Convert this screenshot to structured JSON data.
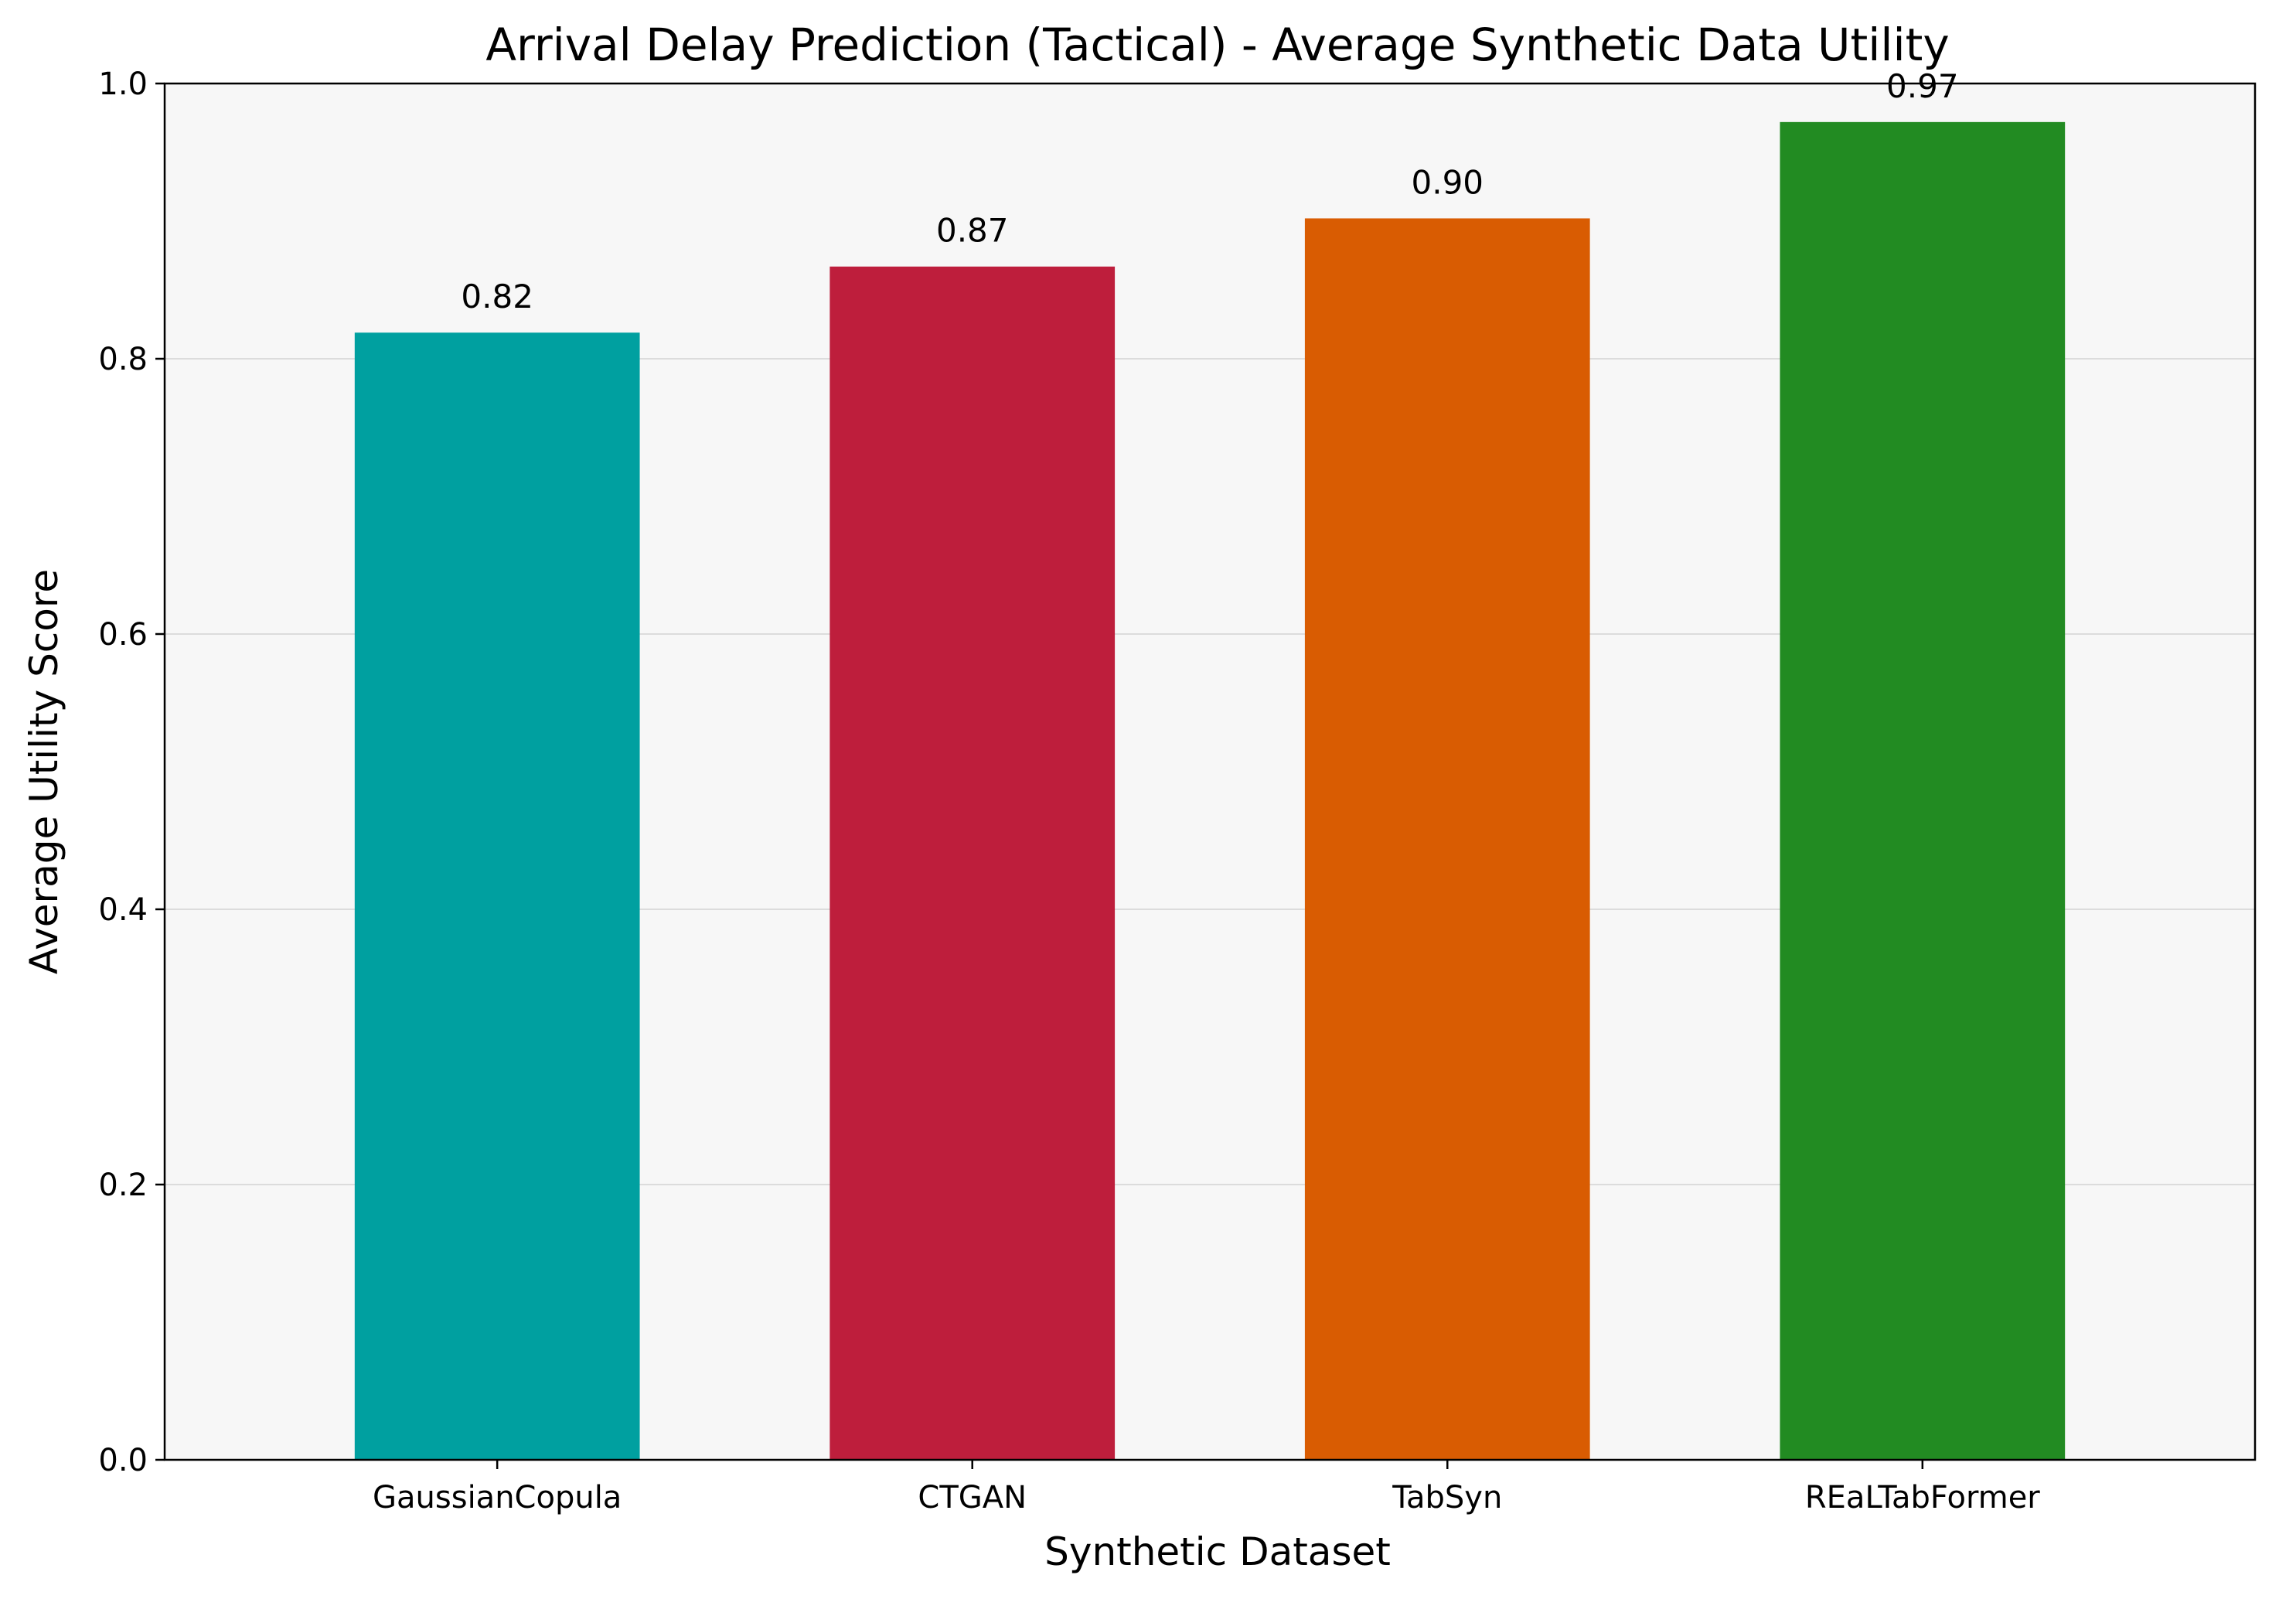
{
  "chart_data": {
    "type": "bar",
    "title": "Arrival Delay Prediction (Tactical) - Average Synthetic Data Utility",
    "xlabel": "Synthetic Dataset",
    "ylabel": "Average Utility Score",
    "categories": [
      "GaussianCopula",
      "CTGAN",
      "TabSyn",
      "REaLTabFormer"
    ],
    "values": [
      0.819,
      0.867,
      0.902,
      0.972
    ],
    "value_labels": [
      "0.82",
      "0.87",
      "0.90",
      "0.97"
    ],
    "colors": [
      "#00a0a0",
      "#be1e3c",
      "#d95c02",
      "#228b22"
    ],
    "ylim": [
      0,
      1.0
    ],
    "yticks": [
      0.0,
      0.2,
      0.4,
      0.6,
      0.8,
      1.0
    ],
    "ytick_labels": [
      "0.0",
      "0.2",
      "0.4",
      "0.6",
      "0.8",
      "1.0"
    ],
    "grid": "y",
    "plot_background": "#f7f7f7"
  }
}
